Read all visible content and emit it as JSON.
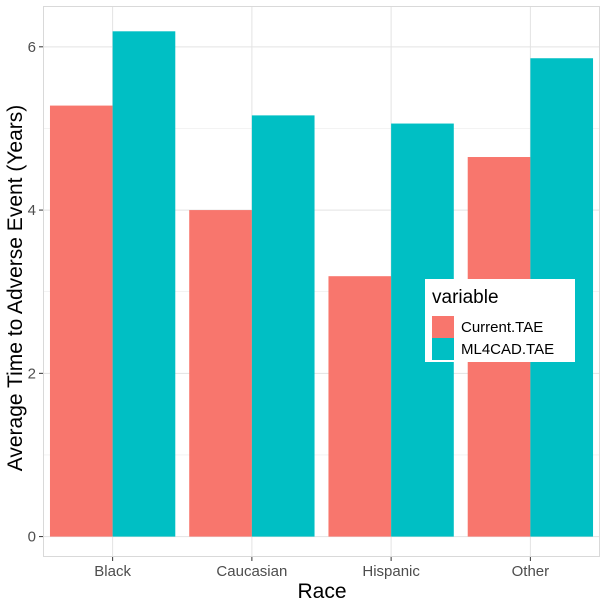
{
  "chart_data": {
    "type": "bar",
    "categories": [
      "Black",
      "Caucasian",
      "Hispanic",
      "Other"
    ],
    "series": [
      {
        "name": "Current.TAE",
        "color": "#F8766D",
        "values": [
          5.28,
          4.0,
          3.19,
          4.65
        ]
      },
      {
        "name": "ML4CAD.TAE",
        "color": "#00BFC4",
        "values": [
          6.19,
          5.16,
          5.06,
          5.86
        ]
      }
    ],
    "xlabel": "Race",
    "ylabel": "Average Time to Adverse Event (Years)",
    "ylim": [
      -0.25,
      6.5
    ],
    "yticks": [
      0,
      2,
      4,
      6
    ],
    "grid": true,
    "legend": {
      "title": "variable",
      "placement": "right-center"
    }
  }
}
